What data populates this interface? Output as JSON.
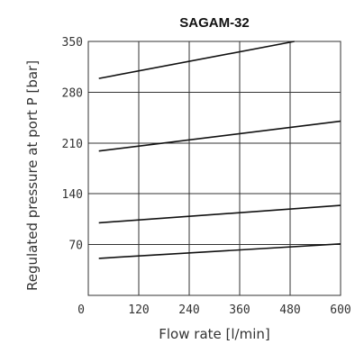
{
  "chart_data": {
    "type": "line",
    "title": "SAGAM-32",
    "xlabel": "Flow rate [l/min]",
    "ylabel": "Regulated pressure at port P [bar]",
    "xlim": [
      0,
      600
    ],
    "ylim": [
      0,
      350
    ],
    "xticks": [
      0,
      120,
      240,
      360,
      480,
      600
    ],
    "yticks": [
      70,
      140,
      210,
      280,
      350
    ],
    "grid": true,
    "series": [
      {
        "x": [
          25,
          600
        ],
        "y": [
          51,
          71
        ]
      },
      {
        "x": [
          25,
          600
        ],
        "y": [
          100,
          124
        ]
      },
      {
        "x": [
          25,
          600
        ],
        "y": [
          199,
          240
        ]
      },
      {
        "x": [
          25,
          490
        ],
        "y": [
          299,
          350
        ]
      }
    ]
  }
}
